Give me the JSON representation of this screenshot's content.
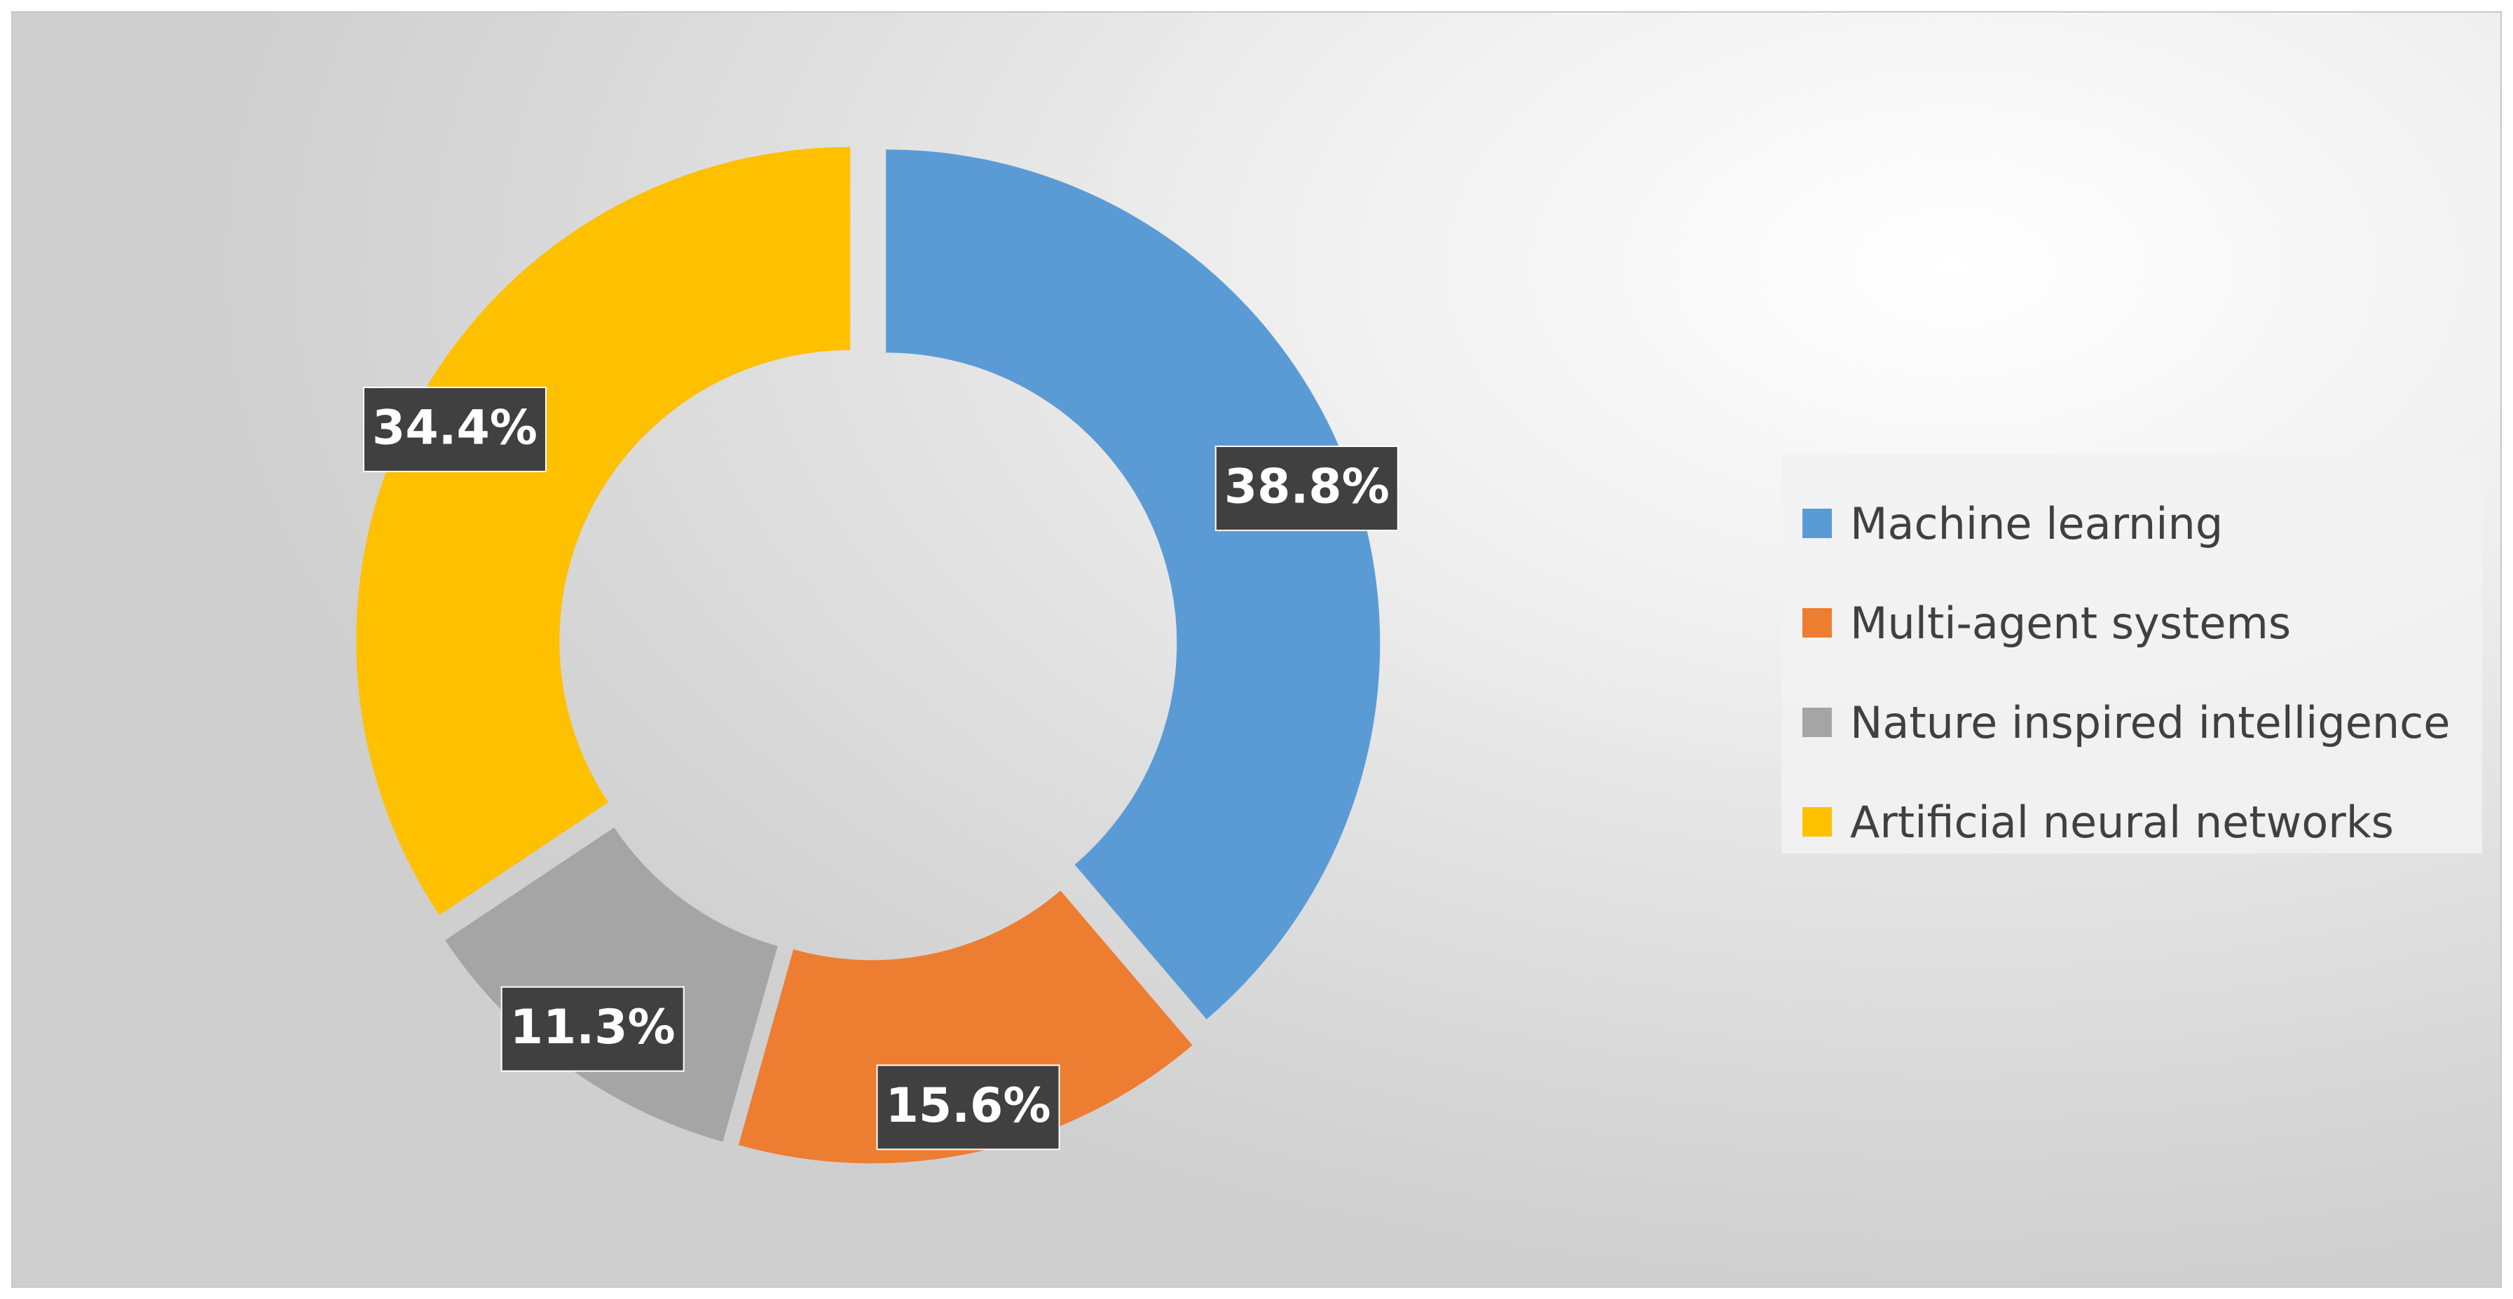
{
  "chart_data": {
    "type": "pie",
    "variant": "donut",
    "title": "",
    "legend_position": "right",
    "start_angle_deg": 0,
    "direction": "clockwise",
    "slices": [
      {
        "name": "Machine learning",
        "value": 38.8,
        "label": "38.8%",
        "color": "#5B9BD5"
      },
      {
        "name": "Multi-agent systems",
        "value": 15.6,
        "label": "15.6%",
        "color": "#ED7D31"
      },
      {
        "name": "Nature inspired intelligence",
        "value": 11.3,
        "label": "11.3%",
        "color": "#A5A5A5"
      },
      {
        "name": "Artificial neural networks",
        "value": 34.4,
        "label": "34.4%",
        "color": "#FFC000"
      }
    ]
  }
}
